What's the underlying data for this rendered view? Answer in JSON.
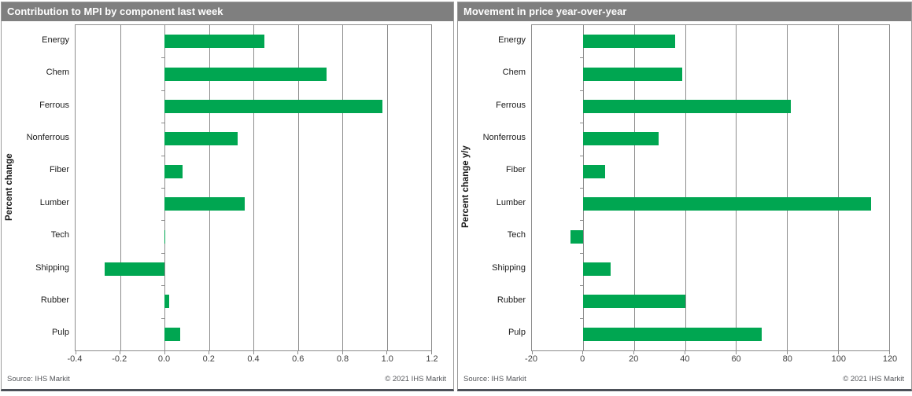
{
  "colors": {
    "bar": "#00A651",
    "title_bar": "#7F7F7F",
    "title_text": "#FFFFFF",
    "grid": "#8C8C8C",
    "axis_text": "#404040",
    "footer_text": "#54565A",
    "bottom_rule": "#4C5058"
  },
  "chart_data": [
    {
      "type": "bar",
      "orientation": "horizontal",
      "title": "Contribution to MPI by component last week",
      "ylabel": "Percent change",
      "source": "Source: IHS Markit",
      "copyright": "© 2021 IHS Markit",
      "categories": [
        "Energy",
        "Chem",
        "Ferrous",
        "Nonferrous",
        "Fiber",
        "Lumber",
        "Tech",
        "Shipping",
        "Rubber",
        "Pulp"
      ],
      "values": [
        0.45,
        0.73,
        0.98,
        0.33,
        0.08,
        0.36,
        0.005,
        -0.27,
        0.02,
        0.07
      ],
      "xlim": [
        -0.4,
        1.2
      ],
      "xticks": [
        -0.4,
        -0.2,
        0,
        0.2,
        0.4,
        0.6,
        0.8,
        1,
        1.2
      ],
      "xtick_labels": [
        "-0.4",
        "-0.2",
        "0.0",
        "0.2",
        "0.4",
        "0.6",
        "0.8",
        "1.0",
        "1.2"
      ],
      "bar_color": "#00A651",
      "grid": true,
      "legend": "none"
    },
    {
      "type": "bar",
      "orientation": "horizontal",
      "title": "Movement in price year-over-year",
      "ylabel": "Percent change y/y",
      "source": "Source: IHS Markit",
      "copyright": "© 2021 IHS Markit",
      "categories": [
        "Energy",
        "Chem",
        "Ferrous",
        "Nonferrous",
        "Fiber",
        "Lumber",
        "Tech",
        "Shipping",
        "Rubber",
        "Pulp"
      ],
      "values": [
        36,
        39,
        81.5,
        29.5,
        8.6,
        113,
        -5,
        10.7,
        40,
        70
      ],
      "xlim": [
        -20,
        120
      ],
      "xticks": [
        -20,
        0,
        20,
        40,
        60,
        80,
        100,
        120
      ],
      "xtick_labels": [
        "-20",
        "0",
        "20",
        "40",
        "60",
        "80",
        "100",
        "120"
      ],
      "bar_color": "#00A651",
      "grid": true,
      "legend": "none"
    }
  ]
}
